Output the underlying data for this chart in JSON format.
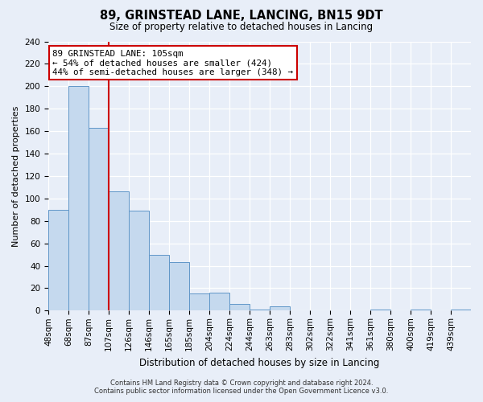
{
  "title": "89, GRINSTEAD LANE, LANCING, BN15 9DT",
  "subtitle": "Size of property relative to detached houses in Lancing",
  "xlabel": "Distribution of detached houses by size in Lancing",
  "ylabel": "Number of detached properties",
  "bar_values": [
    90,
    200,
    163,
    106,
    89,
    50,
    43,
    15,
    16,
    6,
    1,
    4,
    0,
    0,
    0,
    0,
    1,
    0,
    1,
    0,
    1
  ],
  "bar_labels": [
    "48sqm",
    "68sqm",
    "87sqm",
    "107sqm",
    "126sqm",
    "146sqm",
    "165sqm",
    "185sqm",
    "204sqm",
    "224sqm",
    "244sqm",
    "263sqm",
    "283sqm",
    "302sqm",
    "322sqm",
    "341sqm",
    "361sqm",
    "380sqm",
    "400sqm",
    "419sqm",
    "439sqm"
  ],
  "bar_color": "#c5d9ee",
  "bar_edge_color": "#6096c8",
  "property_line_x": 3,
  "property_line_label": "89 GRINSTEAD LANE: 105sqm",
  "annotation_line1": "← 54% of detached houses are smaller (424)",
  "annotation_line2": "44% of semi-detached houses are larger (348) →",
  "annotation_box_color": "#ffffff",
  "annotation_box_edge": "#cc0000",
  "ylim": [
    0,
    240
  ],
  "yticks": [
    0,
    20,
    40,
    60,
    80,
    100,
    120,
    140,
    160,
    180,
    200,
    220,
    240
  ],
  "footer_line1": "Contains HM Land Registry data © Crown copyright and database right 2024.",
  "footer_line2": "Contains public sector information licensed under the Open Government Licence v3.0.",
  "bg_color": "#e8eef8",
  "grid_color": "#ffffff",
  "title_fontsize": 10.5,
  "subtitle_fontsize": 8.5,
  "xlabel_fontsize": 8.5,
  "ylabel_fontsize": 8,
  "tick_fontsize": 7.5,
  "footer_fontsize": 6.0
}
